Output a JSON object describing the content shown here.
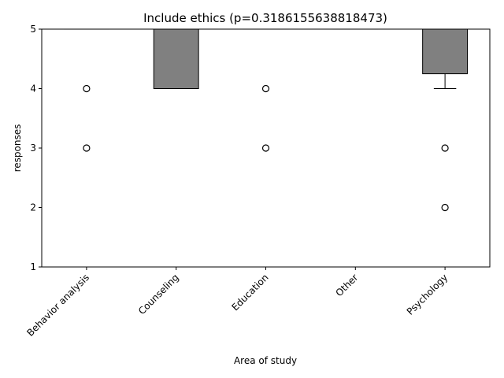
{
  "chart_data": {
    "type": "box",
    "title": "Include ethics (p=0.3186155638818473)",
    "xlabel": "Area of study",
    "ylabel": "responses",
    "ylim": [
      1,
      5
    ],
    "yticks": [
      1,
      2,
      3,
      4,
      5
    ],
    "categories": [
      "Behavior analysis",
      "Counseling",
      "Education",
      "Other",
      "Psychology"
    ],
    "boxes": [
      {
        "q1": 5,
        "median": 5,
        "q3": 5,
        "whisker_low": 5,
        "whisker_high": 5,
        "outliers": [
          4,
          3
        ]
      },
      {
        "q1": 4,
        "median": 4,
        "q3": 5,
        "whisker_low": 4,
        "whisker_high": 5,
        "outliers": []
      },
      {
        "q1": 5,
        "median": 5,
        "q3": 5,
        "whisker_low": 5,
        "whisker_high": 5,
        "outliers": [
          4,
          3
        ]
      },
      {
        "q1": 5,
        "median": 5,
        "q3": 5,
        "whisker_low": 5,
        "whisker_high": 5,
        "outliers": []
      },
      {
        "q1": 4.25,
        "median": 5,
        "q3": 5,
        "whisker_low": 4,
        "whisker_high": 5,
        "outliers": [
          3,
          2
        ]
      }
    ],
    "box_color": "#808080",
    "grid": false,
    "legend": "none"
  }
}
